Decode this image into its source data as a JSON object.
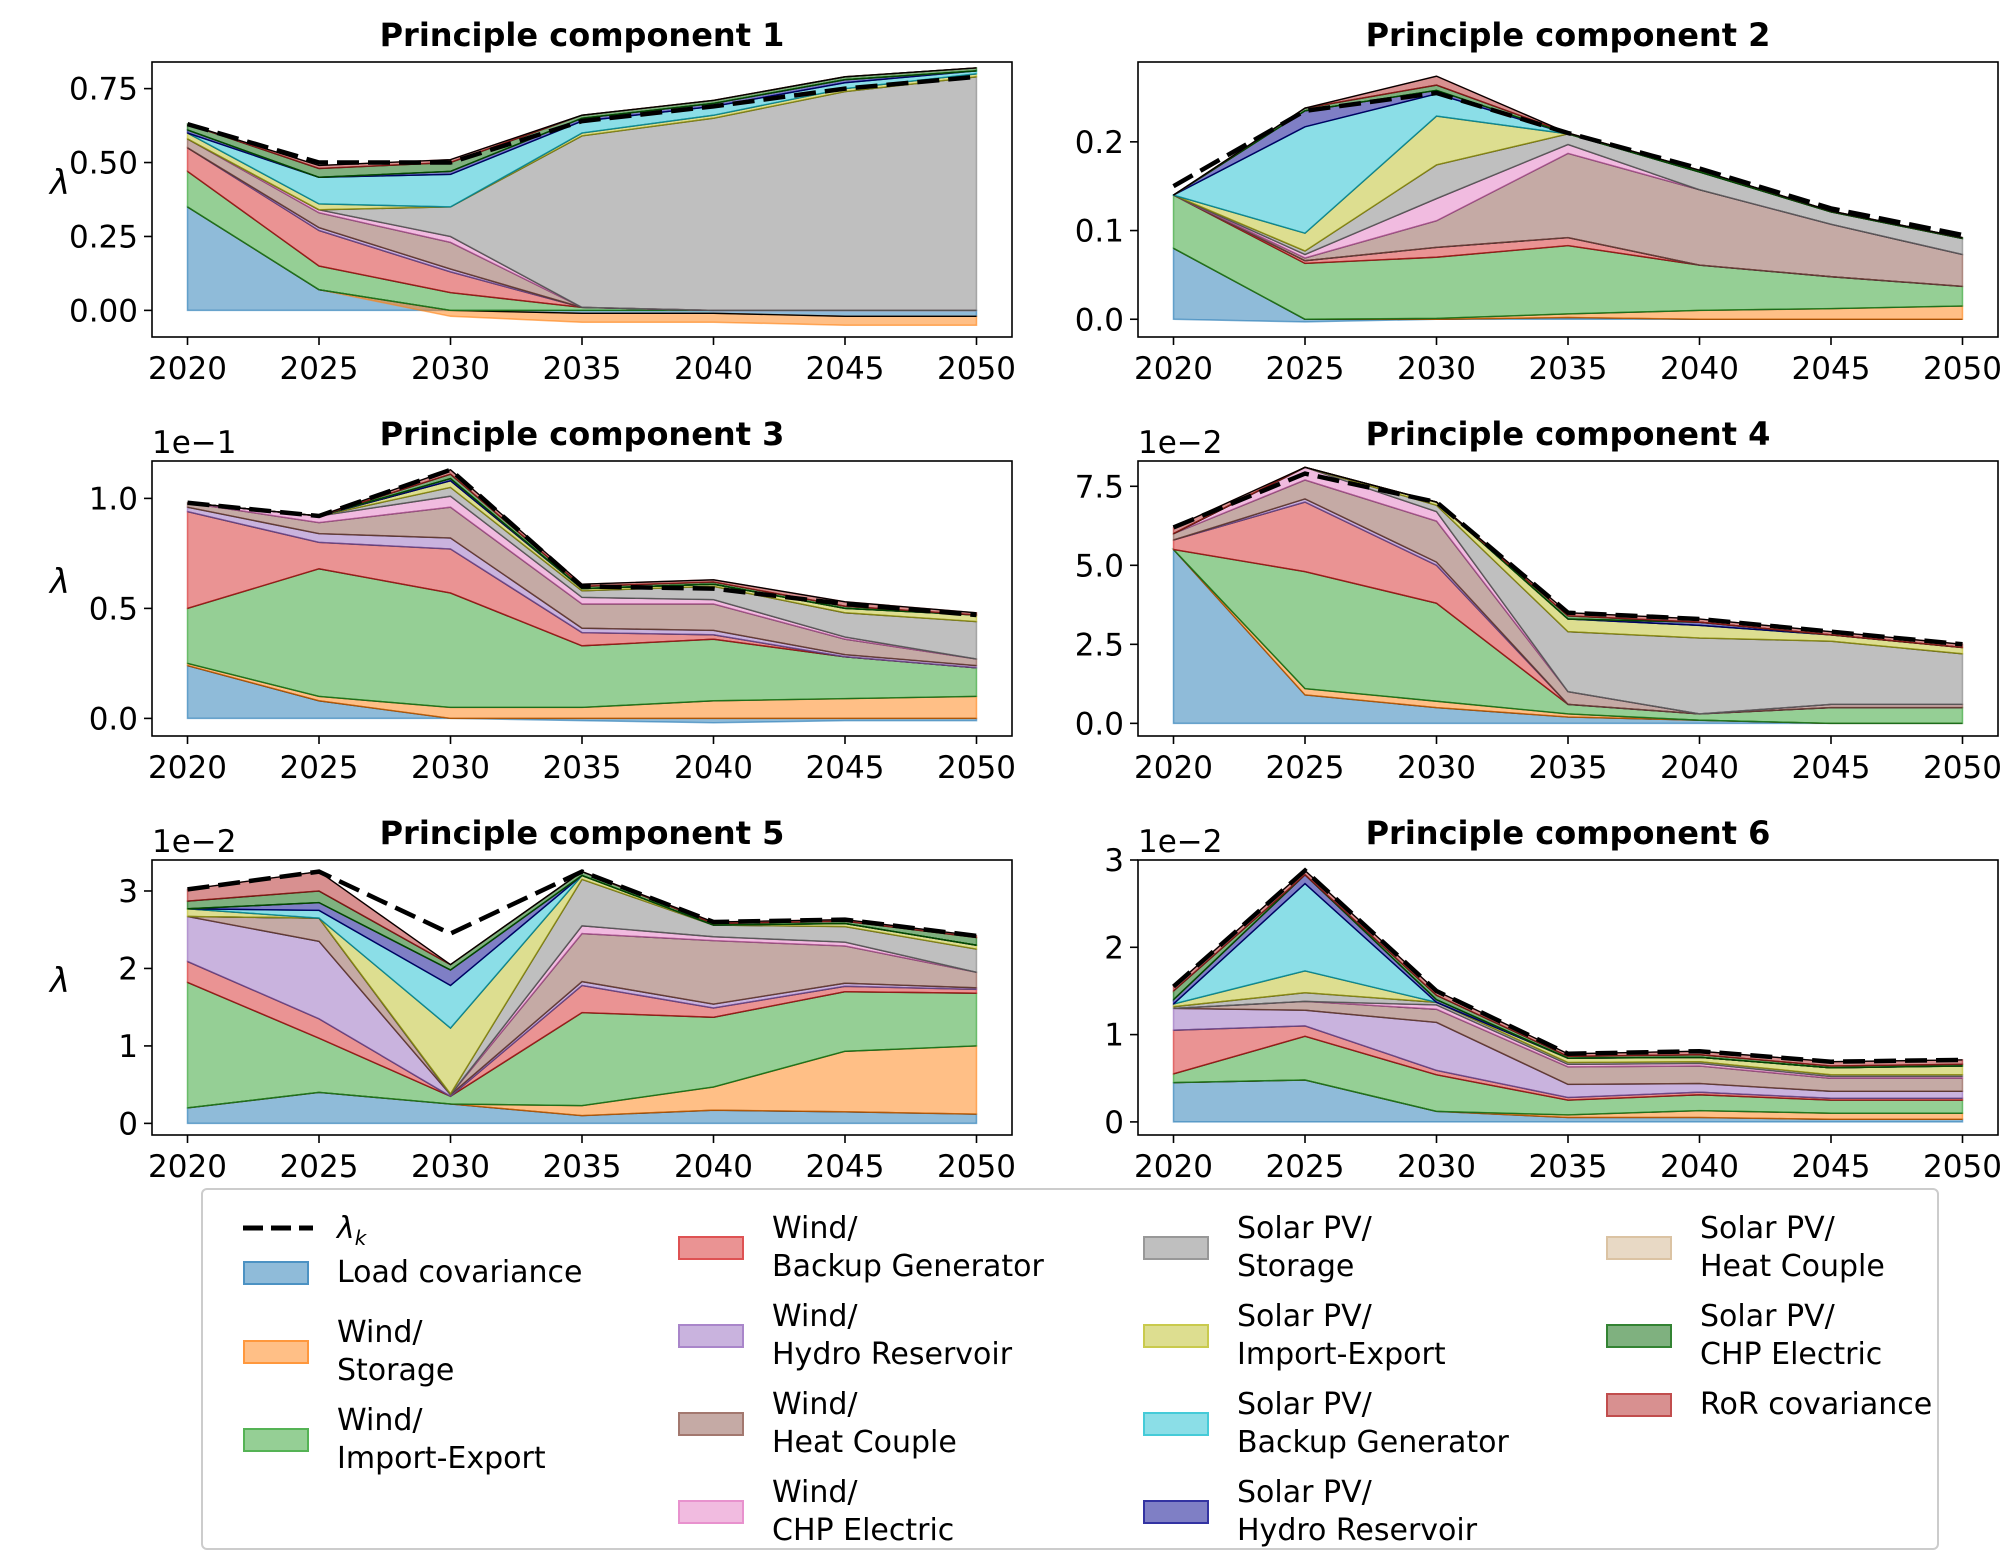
{
  "chart_data": [
    {
      "type": "area",
      "title": "Principle component 1",
      "ylabel": "λ",
      "multiplier": "",
      "x": [
        2020,
        2025,
        2030,
        2035,
        2040,
        2045,
        2050
      ],
      "ylim": [
        -0.09,
        0.84
      ],
      "yticks": [
        0.0,
        0.25,
        0.5,
        0.75
      ],
      "ytick_labels": [
        "0.00",
        "0.25",
        "0.50",
        "0.75"
      ],
      "total": [
        0.63,
        0.5,
        0.5,
        0.64,
        0.69,
        0.75,
        0.79
      ],
      "series": [
        {
          "values": [
            0.35,
            0.07,
            0.0,
            -0.01,
            -0.01,
            -0.02,
            -0.02
          ]
        },
        {
          "values": [
            0.0,
            0.0,
            -0.02,
            -0.03,
            -0.03,
            -0.03,
            -0.03
          ]
        },
        {
          "values": [
            0.12,
            0.08,
            0.06,
            0.01,
            0.0,
            0.0,
            0.0
          ]
        },
        {
          "values": [
            0.08,
            0.12,
            0.07,
            0.0,
            0.0,
            0.0,
            0.0
          ]
        },
        {
          "values": [
            0.0,
            0.01,
            0.01,
            0.0,
            0.0,
            0.0,
            0.0
          ]
        },
        {
          "values": [
            0.03,
            0.05,
            0.09,
            0.0,
            0.0,
            0.0,
            0.0
          ]
        },
        {
          "values": [
            0.0,
            0.01,
            0.02,
            0.0,
            0.0,
            0.0,
            0.0
          ]
        },
        {
          "values": [
            0.0,
            0.0,
            0.1,
            0.58,
            0.65,
            0.74,
            0.79
          ]
        },
        {
          "values": [
            0.02,
            0.02,
            0.0,
            0.01,
            0.01,
            0.01,
            0.01
          ]
        },
        {
          "values": [
            0.0,
            0.09,
            0.11,
            0.04,
            0.03,
            0.02,
            0.01
          ]
        },
        {
          "values": [
            0.01,
            0.0,
            0.01,
            0.01,
            0.01,
            0.01,
            0.0
          ]
        },
        {
          "values": [
            0.0,
            0.0,
            0.0,
            0.0,
            0.0,
            0.0,
            0.0
          ]
        },
        {
          "values": [
            0.02,
            0.03,
            0.03,
            0.01,
            0.01,
            0.01,
            0.01
          ]
        },
        {
          "values": [
            0.0,
            0.01,
            0.01,
            0.0,
            0.0,
            0.0,
            0.0
          ]
        }
      ]
    },
    {
      "type": "area",
      "title": "Principle component 2",
      "ylabel": "",
      "multiplier": "",
      "x": [
        2020,
        2025,
        2030,
        2035,
        2040,
        2045,
        2050
      ],
      "ylim": [
        -0.02,
        0.29
      ],
      "yticks": [
        0.0,
        0.1,
        0.2
      ],
      "ytick_labels": [
        "0.0",
        "0.1",
        "0.2"
      ],
      "total": [
        0.15,
        0.235,
        0.255,
        0.21,
        0.17,
        0.125,
        0.095
      ],
      "series": [
        {
          "values": [
            0.08,
            -0.003,
            0.0,
            0.002,
            0.0,
            0.0,
            0.0
          ]
        },
        {
          "values": [
            0.0,
            0.0,
            0.001,
            0.004,
            0.01,
            0.012,
            0.015
          ]
        },
        {
          "values": [
            0.06,
            0.063,
            0.069,
            0.077,
            0.051,
            0.036,
            0.022
          ]
        },
        {
          "values": [
            0.0,
            0.003,
            0.011,
            0.009,
            0.0,
            0.0,
            0.0
          ]
        },
        {
          "values": [
            0.0,
            0.0,
            0.0,
            0.0,
            0.0,
            0.0,
            0.0
          ]
        },
        {
          "values": [
            0.0,
            0.003,
            0.03,
            0.095,
            0.085,
            0.059,
            0.036
          ]
        },
        {
          "values": [
            0.0,
            0.004,
            0.025,
            0.01,
            0.0,
            0.0,
            0.0
          ]
        },
        {
          "values": [
            0.0,
            0.004,
            0.038,
            0.012,
            0.02,
            0.014,
            0.018
          ]
        },
        {
          "values": [
            0.0,
            0.02,
            0.055,
            0.0,
            0.0,
            0.0,
            0.0
          ]
        },
        {
          "values": [
            0.0,
            0.12,
            0.025,
            0.0,
            0.0,
            0.0,
            0.0
          ]
        },
        {
          "values": [
            0.0,
            0.018,
            0.004,
            0.0,
            0.0,
            0.0,
            0.0
          ]
        },
        {
          "values": [
            0.0,
            0.0,
            0.0,
            0.0,
            0.0,
            0.0,
            0.0
          ]
        },
        {
          "values": [
            0.0,
            0.003,
            0.006,
            0.001,
            0.002,
            0.001,
            0.001
          ]
        },
        {
          "values": [
            0.0,
            0.0,
            0.01,
            0.0,
            0.0,
            0.0,
            0.0
          ]
        }
      ]
    },
    {
      "type": "area",
      "title": "Principle component 3",
      "ylabel": "λ",
      "multiplier": "1e−1",
      "x": [
        2020,
        2025,
        2030,
        2035,
        2040,
        2045,
        2050
      ],
      "ylim": [
        -0.08,
        1.17
      ],
      "yticks": [
        0.0,
        0.5,
        1.0
      ],
      "ytick_labels": [
        "0.0",
        "0.5",
        "1.0"
      ],
      "total": [
        0.98,
        0.92,
        1.13,
        0.6,
        0.59,
        0.52,
        0.47
      ],
      "series": [
        {
          "values": [
            0.24,
            0.08,
            0.0,
            -0.01,
            -0.02,
            -0.01,
            -0.01
          ]
        },
        {
          "values": [
            0.01,
            0.02,
            0.05,
            0.05,
            0.08,
            0.09,
            0.1
          ]
        },
        {
          "values": [
            0.25,
            0.58,
            0.52,
            0.28,
            0.28,
            0.19,
            0.13
          ]
        },
        {
          "values": [
            0.44,
            0.12,
            0.2,
            0.06,
            0.02,
            0.0,
            0.0
          ]
        },
        {
          "values": [
            0.02,
            0.04,
            0.05,
            0.02,
            0.02,
            0.01,
            0.01
          ]
        },
        {
          "values": [
            0.02,
            0.05,
            0.14,
            0.11,
            0.12,
            0.07,
            0.03
          ]
        },
        {
          "values": [
            0.0,
            0.03,
            0.05,
            0.03,
            0.02,
            0.01,
            0.0
          ]
        },
        {
          "values": [
            0.0,
            0.0,
            0.04,
            0.03,
            0.06,
            0.11,
            0.17
          ]
        },
        {
          "values": [
            0.0,
            0.0,
            0.03,
            0.01,
            0.01,
            0.02,
            0.03
          ]
        },
        {
          "values": [
            0.0,
            0.0,
            0.0,
            0.0,
            0.0,
            0.0,
            0.0
          ]
        },
        {
          "values": [
            0.0,
            0.0,
            0.01,
            0.0,
            0.0,
            0.0,
            0.0
          ]
        },
        {
          "values": [
            0.0,
            0.0,
            0.0,
            0.0,
            0.0,
            0.0,
            0.0
          ]
        },
        {
          "values": [
            0.0,
            0.0,
            0.02,
            0.01,
            0.01,
            0.01,
            0.0
          ]
        },
        {
          "values": [
            0.0,
            0.0,
            0.02,
            0.01,
            0.01,
            0.02,
            0.01
          ]
        }
      ]
    },
    {
      "type": "area",
      "title": "Principle component 4",
      "ylabel": "",
      "multiplier": "1e−2",
      "x": [
        2020,
        2025,
        2030,
        2035,
        2040,
        2045,
        2050
      ],
      "ylim": [
        -0.4,
        8.3
      ],
      "yticks": [
        0.0,
        2.5,
        5.0,
        7.5
      ],
      "ytick_labels": [
        "0.0",
        "2.5",
        "5.0",
        "7.5"
      ],
      "total": [
        6.2,
        7.9,
        7.0,
        3.5,
        3.3,
        2.9,
        2.5
      ],
      "series": [
        {
          "values": [
            5.5,
            0.9,
            0.5,
            0.2,
            0.1,
            0.0,
            0.0
          ]
        },
        {
          "values": [
            0.0,
            0.2,
            0.2,
            0.1,
            0.0,
            0.0,
            0.0
          ]
        },
        {
          "values": [
            0.0,
            3.7,
            3.1,
            0.3,
            0.2,
            0.5,
            0.5
          ]
        },
        {
          "values": [
            0.3,
            2.2,
            1.2,
            0.0,
            0.0,
            0.0,
            0.0
          ]
        },
        {
          "values": [
            0.0,
            0.1,
            0.1,
            0.0,
            0.0,
            0.0,
            0.0
          ]
        },
        {
          "values": [
            0.2,
            0.6,
            1.3,
            0.4,
            0.0,
            0.1,
            0.1
          ]
        },
        {
          "values": [
            0.0,
            0.4,
            0.3,
            0.0,
            0.0,
            0.0,
            0.0
          ]
        },
        {
          "values": [
            0.0,
            0.0,
            0.2,
            1.9,
            2.4,
            2.0,
            1.6
          ]
        },
        {
          "values": [
            0.0,
            0.0,
            0.1,
            0.4,
            0.4,
            0.2,
            0.2
          ]
        },
        {
          "values": [
            0.0,
            0.0,
            0.0,
            0.0,
            0.0,
            0.0,
            0.0
          ]
        },
        {
          "values": [
            0.0,
            0.0,
            0.0,
            0.0,
            0.1,
            0.0,
            0.0
          ]
        },
        {
          "values": [
            0.0,
            0.0,
            0.0,
            0.0,
            0.0,
            0.0,
            0.0
          ]
        },
        {
          "values": [
            0.0,
            0.0,
            0.0,
            0.1,
            0.0,
            0.0,
            0.0
          ]
        },
        {
          "values": [
            0.2,
            0.0,
            0.0,
            0.1,
            0.1,
            0.1,
            0.1
          ]
        }
      ]
    },
    {
      "type": "area",
      "title": "Principle component 5",
      "ylabel": "λ",
      "multiplier": "1e−2",
      "x": [
        2020,
        2025,
        2030,
        2035,
        2040,
        2045,
        2050
      ],
      "ylim": [
        -0.15,
        3.4
      ],
      "yticks": [
        0,
        1,
        2,
        3
      ],
      "ytick_labels": [
        "0",
        "1",
        "2",
        "3"
      ],
      "total": [
        3.02,
        3.25,
        2.45,
        3.25,
        2.6,
        2.63,
        2.42
      ],
      "series": [
        {
          "values": [
            0.2,
            0.4,
            0.25,
            0.1,
            0.17,
            0.15,
            0.12
          ]
        },
        {
          "values": [
            0.0,
            0.0,
            0.0,
            0.13,
            0.3,
            0.78,
            0.88
          ]
        },
        {
          "values": [
            1.62,
            0.7,
            0.1,
            1.2,
            0.9,
            0.77,
            0.68
          ]
        },
        {
          "values": [
            0.27,
            0.25,
            0.0,
            0.35,
            0.12,
            0.07,
            0.05
          ]
        },
        {
          "values": [
            0.58,
            1.0,
            0.02,
            0.05,
            0.05,
            0.04,
            0.02
          ]
        },
        {
          "values": [
            0.0,
            0.3,
            0.0,
            0.62,
            0.82,
            0.48,
            0.2
          ]
        },
        {
          "values": [
            0.0,
            0.0,
            0.0,
            0.1,
            0.05,
            0.05,
            0.0
          ]
        },
        {
          "values": [
            0.0,
            0.0,
            0.01,
            0.6,
            0.15,
            0.2,
            0.3
          ]
        },
        {
          "values": [
            0.1,
            0.0,
            0.85,
            0.05,
            0.0,
            0.04,
            0.05
          ]
        },
        {
          "values": [
            0.0,
            0.1,
            0.55,
            0.0,
            0.0,
            0.0,
            0.0
          ]
        },
        {
          "values": [
            0.0,
            0.1,
            0.2,
            0.0,
            0.0,
            0.0,
            0.0
          ]
        },
        {
          "values": [
            0.0,
            0.0,
            0.0,
            0.0,
            0.0,
            0.0,
            0.0
          ]
        },
        {
          "values": [
            0.1,
            0.15,
            0.07,
            0.05,
            0.02,
            0.03,
            0.1
          ]
        },
        {
          "values": [
            0.15,
            0.25,
            0.0,
            0.0,
            0.02,
            0.02,
            0.02
          ]
        }
      ]
    },
    {
      "type": "area",
      "title": "Principle component 6",
      "ylabel": "",
      "multiplier": "1e−2",
      "x": [
        2020,
        2025,
        2030,
        2035,
        2040,
        2045,
        2050
      ],
      "ylim": [
        -0.15,
        3.0
      ],
      "yticks": [
        0,
        1,
        2,
        3
      ],
      "ytick_labels": [
        "0",
        "1",
        "2",
        "3"
      ],
      "total": [
        1.55,
        2.88,
        1.5,
        0.78,
        0.81,
        0.69,
        0.71
      ],
      "series": [
        {
          "values": [
            0.45,
            0.48,
            0.12,
            0.05,
            0.05,
            0.03,
            0.03
          ]
        },
        {
          "values": [
            0.0,
            0.0,
            0.0,
            0.03,
            0.08,
            0.07,
            0.07
          ]
        },
        {
          "values": [
            0.1,
            0.5,
            0.42,
            0.17,
            0.18,
            0.15,
            0.15
          ]
        },
        {
          "values": [
            0.5,
            0.12,
            0.05,
            0.03,
            0.03,
            0.02,
            0.02
          ]
        },
        {
          "values": [
            0.25,
            0.18,
            0.55,
            0.15,
            0.1,
            0.08,
            0.08
          ]
        },
        {
          "values": [
            0.0,
            0.1,
            0.15,
            0.2,
            0.2,
            0.15,
            0.15
          ]
        },
        {
          "values": [
            0.0,
            0.0,
            0.05,
            0.03,
            0.03,
            0.02,
            0.02
          ]
        },
        {
          "values": [
            0.02,
            0.1,
            0.03,
            0.02,
            0.02,
            0.02,
            0.02
          ]
        },
        {
          "values": [
            0.03,
            0.25,
            0.0,
            0.05,
            0.05,
            0.08,
            0.1
          ]
        },
        {
          "values": [
            0.0,
            1.0,
            0.0,
            0.0,
            0.0,
            0.0,
            0.0
          ]
        },
        {
          "values": [
            0.05,
            0.1,
            0.03,
            0.0,
            0.0,
            0.0,
            0.0
          ]
        },
        {
          "values": [
            0.0,
            0.0,
            0.0,
            0.0,
            0.0,
            0.0,
            0.0
          ]
        },
        {
          "values": [
            0.1,
            0.0,
            0.05,
            0.02,
            0.03,
            0.02,
            0.02
          ]
        },
        {
          "values": [
            0.05,
            0.05,
            0.05,
            0.03,
            0.04,
            0.05,
            0.05
          ]
        }
      ]
    }
  ],
  "legend": {
    "total_label": "λk",
    "entries": [
      {
        "label": "Load covariance",
        "color": "#1f77b4"
      },
      {
        "label": "Wind/\nStorage",
        "color": "#ff7f0e"
      },
      {
        "label": "Wind/\nImport-Export",
        "color": "#2ca02c"
      },
      {
        "label": "Wind/\nBackup Generator",
        "color": "#d62728"
      },
      {
        "label": "Wind/\nHydro Reservoir",
        "color": "#9467bd"
      },
      {
        "label": "Wind/\nHeat Couple",
        "color": "#8c564b"
      },
      {
        "label": "Wind/\nCHP Electric",
        "color": "#e377c2"
      },
      {
        "label": "Solar PV/\nStorage",
        "color": "#7f7f7f"
      },
      {
        "label": "Solar PV/\nImport-Export",
        "color": "#bcbd22"
      },
      {
        "label": "Solar PV/\nBackup Generator",
        "color": "#17becf"
      },
      {
        "label": "Solar PV/\nHydro Reservoir",
        "color": "#00008b"
      },
      {
        "label": "Solar PV/\nHeat Couple",
        "color": "#d2b48c"
      },
      {
        "label": "Solar PV/\nCHP Electric",
        "color": "#006400"
      },
      {
        "label": "RoR covariance",
        "color": "#b22222"
      }
    ]
  }
}
